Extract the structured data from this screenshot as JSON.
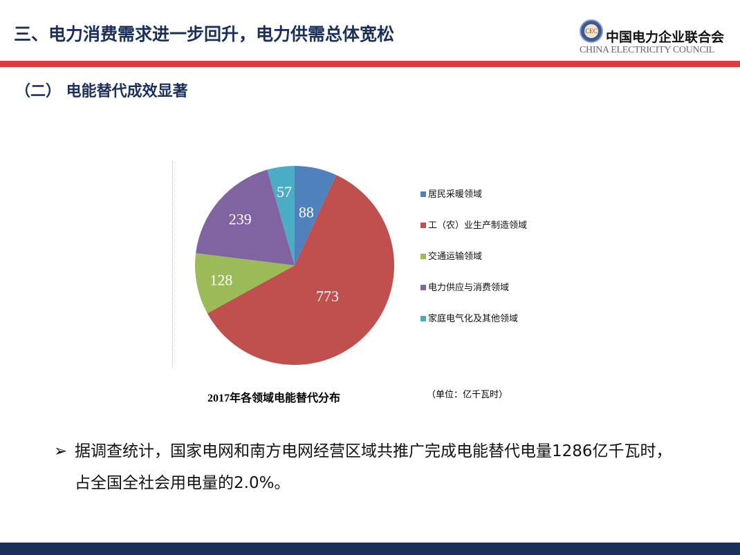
{
  "header": {
    "title": "三、电力消费需求进一步回升，电力供需总体宽松",
    "logo": {
      "cn": "中国电力企业联合会",
      "en": "CHINA ELECTRICITY COUNCIL",
      "seal": "CEC"
    }
  },
  "subtitle": "（二） 电能替代成效显著",
  "chart_data": {
    "type": "pie",
    "title": "2017年各领域电能替代分布",
    "unit": "（单位：亿千瓦时）",
    "categories": [
      "居民采暖领域",
      "工（农）业生产制造领域",
      "交通运输领域",
      "电力供应与消费领域",
      "家庭电气化及其他领域"
    ],
    "values": [
      88,
      773,
      128,
      239,
      57
    ],
    "labels": [
      "88",
      "773",
      "128",
      "239",
      "57"
    ],
    "colors": [
      "#4f81bd",
      "#c0504d",
      "#9bbb59",
      "#8064a2",
      "#4bacc6"
    ],
    "legend": "right"
  },
  "bullet": {
    "arrow": "➢",
    "text": "据调查统计，国家电网和南方电网经营区域共推广完成电能替代电量1286亿千瓦时，占全国全社会用电量的2.0%。"
  }
}
